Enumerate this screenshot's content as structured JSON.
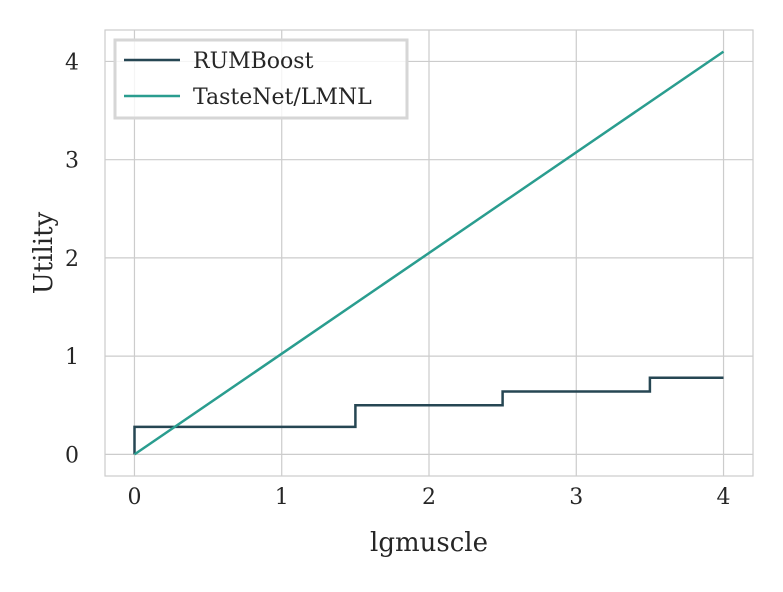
{
  "chart_data": {
    "type": "line",
    "title": "",
    "xlabel": "lgmuscle",
    "ylabel": "Utility",
    "xlim": [
      -0.2,
      4.2
    ],
    "ylim": [
      -0.22,
      4.32
    ],
    "xticks": [
      0,
      1,
      2,
      3,
      4
    ],
    "yticks": [
      0,
      1,
      2,
      3,
      4
    ],
    "xtick_labels": [
      "0",
      "1",
      "2",
      "3",
      "4"
    ],
    "ytick_labels": [
      "0",
      "1",
      "2",
      "3",
      "4"
    ],
    "grid": true,
    "legend_position": "top-left",
    "series": [
      {
        "name": "RUMBoost",
        "color": "#264653",
        "style": "step",
        "x": [
          0,
          0,
          1.5,
          1.5,
          2.5,
          2.5,
          3.5,
          3.5,
          4.0
        ],
        "y": [
          0,
          0.28,
          0.28,
          0.5,
          0.5,
          0.64,
          0.64,
          0.78,
          0.78
        ]
      },
      {
        "name": "TasteNet/LMNL",
        "color": "#2a9d8f",
        "style": "line",
        "x": [
          0,
          4.0
        ],
        "y": [
          0,
          4.1
        ]
      }
    ]
  }
}
